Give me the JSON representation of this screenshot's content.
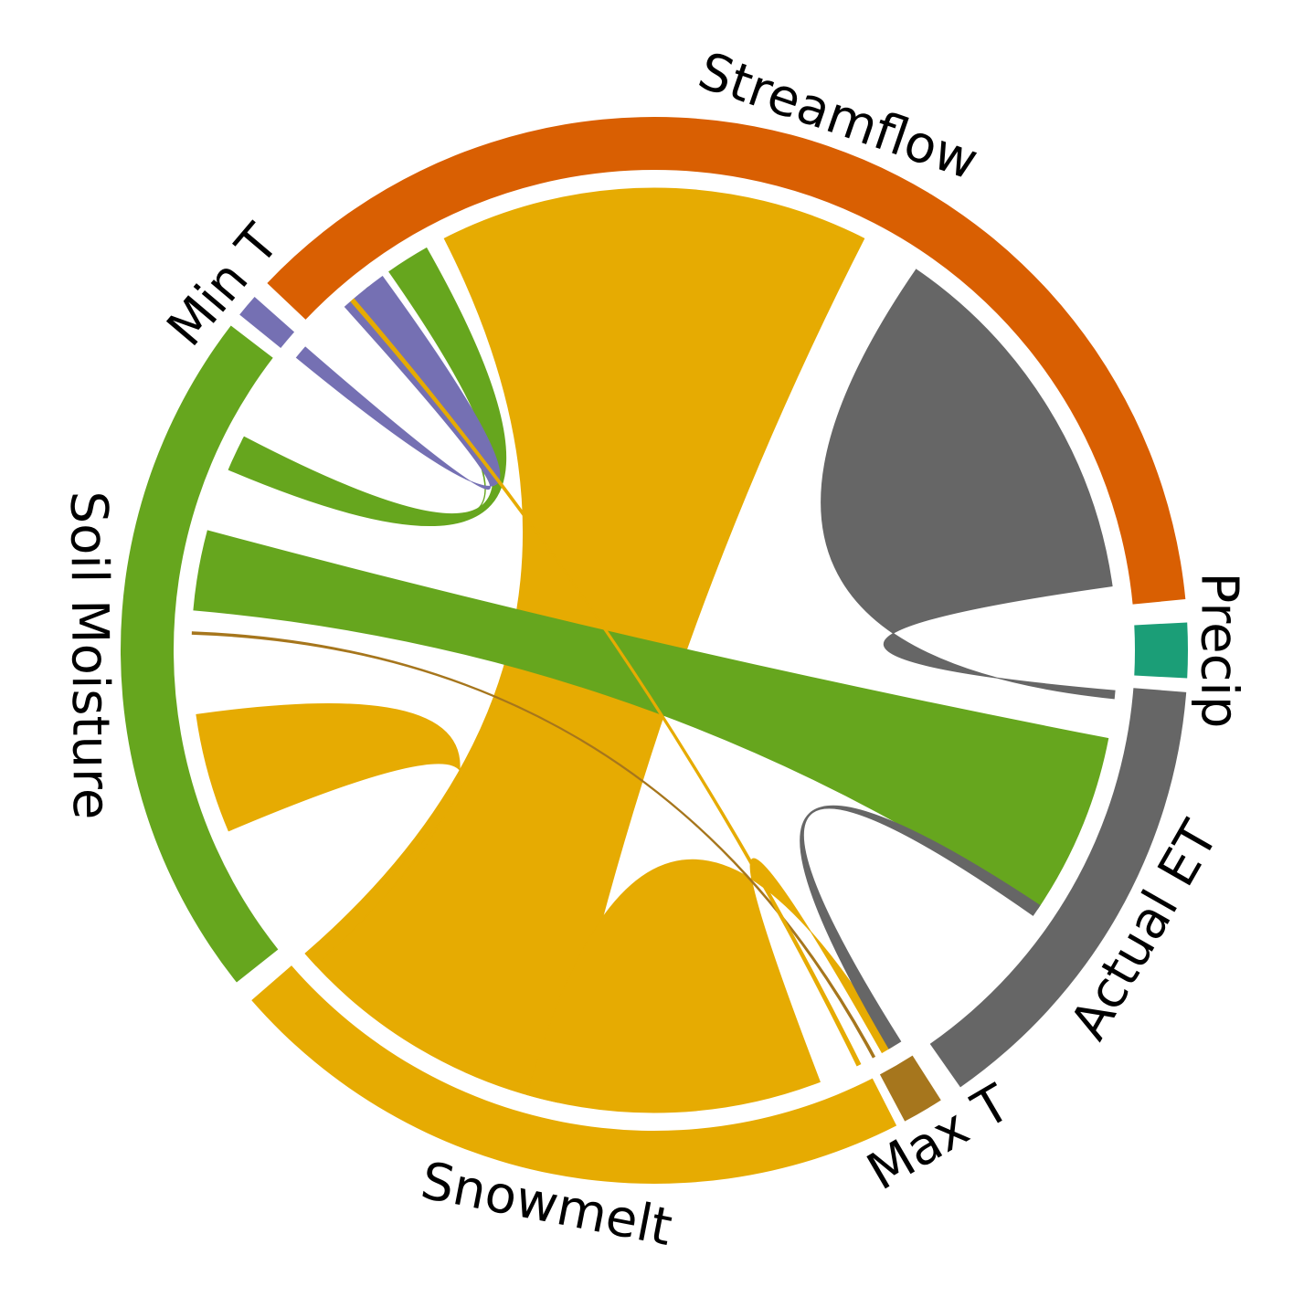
{
  "chart_data": {
    "type": "chord",
    "nodes": [
      {
        "id": "streamflow",
        "label": "Streamflow",
        "color": "#D95F02"
      },
      {
        "id": "precip",
        "label": "Precip",
        "color": "#1B9E77"
      },
      {
        "id": "actual_et",
        "label": "Actual ET",
        "color": "#666666"
      },
      {
        "id": "max_t",
        "label": "Max T",
        "color": "#A6761D"
      },
      {
        "id": "snowmelt",
        "label": "Snowmelt",
        "color": "#E6AB02"
      },
      {
        "id": "soil_moisture",
        "label": "Soil Moisture",
        "color": "#66A61E"
      },
      {
        "id": "min_t",
        "label": "Min T",
        "color": "#7570B3"
      }
    ],
    "arc_degrees": {
      "streamflow": [
        -136.5,
        -5.5
      ],
      "precip": [
        -3.0,
        3.0
      ],
      "actual_et": [
        4.5,
        55.0
      ],
      "max_t": [
        57.5,
        62.0
      ],
      "snowmelt": [
        63.0,
        139.0
      ],
      "soil_moisture": [
        141.5,
        217.5
      ],
      "min_t": [
        219.0,
        221.5
      ]
    },
    "links": [
      {
        "source": "snowmelt",
        "target": "streamflow",
        "src_deg": [
          102.0,
          139.0
        ],
        "dst_deg": [
          -117.0,
          -63.0
        ]
      },
      {
        "source": "snowmelt",
        "target": "soil_moisture",
        "src_deg": [
          137.0,
          139.0
        ],
        "dst_deg": [
          157.0,
          172.0
        ]
      },
      {
        "source": "snowmelt",
        "target": "max_t",
        "src_deg": [
          69.0,
          106.0
        ],
        "dst_deg": [
          59.0,
          60.5
        ]
      },
      {
        "source": "soil_moisture",
        "target": "actual_et",
        "src_deg": [
          185.0,
          195.0
        ],
        "dst_deg": [
          11.0,
          34.0
        ]
      },
      {
        "source": "soil_moisture",
        "target": "streamflow",
        "src_deg": [
          203.0,
          207.5
        ],
        "dst_deg": [
          -125.0,
          -119.5
        ]
      },
      {
        "source": "soil_moisture",
        "target": "streamflow",
        "src_deg": [
          207.0,
          207.3
        ],
        "dst_deg": [
          -128.5,
          -128.2
        ]
      },
      {
        "source": "min_t",
        "target": "streamflow",
        "src_deg": [
          219.3,
          221.0
        ],
        "dst_deg": [
          -132.0,
          -126.0
        ]
      },
      {
        "source": "actual_et",
        "target": "streamflow",
        "src_deg": [
          5.0,
          6.0
        ],
        "dst_deg": [
          -55.5,
          -8.0
        ]
      },
      {
        "source": "actual_et",
        "target": "max_t",
        "src_deg": [
          33.5,
          35.0
        ],
        "dst_deg": [
          57.8,
          59.5
        ]
      },
      {
        "source": "max_t",
        "target": "soil_moisture",
        "src_deg": [
          61.5,
          61.8
        ],
        "dst_deg": [
          182.0,
          182.3
        ]
      },
      {
        "source": "snowmelt",
        "target": "streamflow",
        "src_deg": [
          63.5,
          64.0
        ],
        "dst_deg": [
          -131.0,
          -130.5
        ]
      }
    ]
  }
}
